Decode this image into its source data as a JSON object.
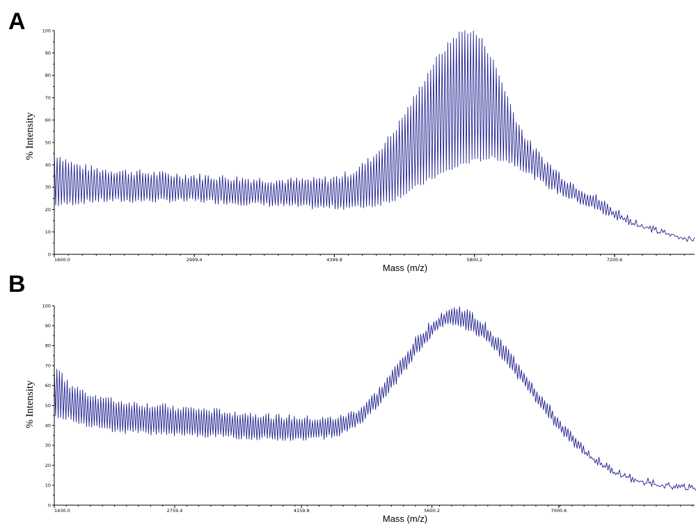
{
  "colors": {
    "trace": "#1f1f8f",
    "axis": "#000000"
  },
  "chart_data": [
    {
      "type": "line",
      "panel_label": "A",
      "xlabel": "Mass (m/z)",
      "ylabel": "% Intensity",
      "xlim": [
        1600.0,
        8000.0
      ],
      "ylim": [
        0,
        100
      ],
      "x_ticks": [
        1600.0,
        2999.4,
        4399.8,
        5800.2,
        7200.6
      ],
      "x_tick_labels": [
        "1600.0",
        "2999.4",
        "4399.8",
        "5800.2",
        "7200.6"
      ],
      "y_ticks": [
        0,
        10,
        20,
        30,
        40,
        50,
        60,
        70,
        80,
        90,
        100
      ],
      "grid": false,
      "series": [
        {
          "x": [
            1600,
            1800,
            2000,
            2300,
            2600,
            3000,
            3400,
            3800,
            4200,
            4400,
            4600,
            4800,
            5000,
            5200,
            5400,
            5600,
            5700,
            5800,
            5900,
            6000,
            6100,
            6200,
            6300,
            6400,
            6500,
            6600,
            6700,
            6800,
            7000,
            7200,
            7400,
            7600,
            7800,
            8000
          ],
          "peak_max": [
            45,
            40,
            38,
            37,
            36,
            35,
            34,
            33,
            33,
            34,
            37,
            44,
            55,
            70,
            86,
            97,
            100,
            99,
            94,
            85,
            74,
            62,
            53,
            47,
            42,
            38,
            34,
            31,
            26,
            20,
            15,
            11,
            8.5,
            6.5
          ],
          "baseline": [
            22,
            23,
            24,
            24,
            24,
            24,
            23,
            22,
            21,
            21,
            21,
            22,
            25,
            30,
            35,
            39,
            41,
            42,
            43,
            43,
            42,
            40,
            37,
            34,
            31,
            28,
            26,
            24,
            20,
            16,
            13,
            10,
            8,
            6.5
          ],
          "peak_spacing": 57
        }
      ]
    },
    {
      "type": "line",
      "panel_label": "B",
      "xlabel": "Mass (m/z)",
      "ylabel": "% Intensity",
      "xlim": [
        1430.0,
        8500.0
      ],
      "ylim": [
        0,
        100
      ],
      "x_ticks": [
        1430.0,
        2759.4,
        4159.8,
        5600.2,
        7000.6
      ],
      "x_tick_labels": [
        "1430.0",
        "2759.4",
        "4159.8",
        "5600.2",
        "7000.6"
      ],
      "y_ticks": [
        0,
        10,
        20,
        30,
        40,
        50,
        60,
        70,
        80,
        90,
        100
      ],
      "grid": false,
      "series": [
        {
          "x": [
            1430,
            1600,
            1800,
            2100,
            2500,
            3000,
            3500,
            4000,
            4400,
            4600,
            4800,
            5000,
            5200,
            5400,
            5600,
            5700,
            5800,
            5900,
            6000,
            6200,
            6400,
            6600,
            6800,
            7000,
            7200,
            7400,
            7600,
            7800,
            8000,
            8200,
            8500
          ],
          "peak_max": [
            70,
            60,
            56,
            52,
            50,
            48,
            46,
            44,
            43,
            44,
            48,
            57,
            69,
            82,
            92,
            96,
            98,
            99,
            97,
            90,
            80,
            68,
            55,
            43,
            32,
            24,
            18,
            14,
            12,
            10,
            9
          ],
          "baseline": [
            45,
            43,
            40,
            37,
            36,
            35,
            34,
            33,
            34,
            36,
            41,
            50,
            62,
            75,
            86,
            90,
            91,
            90,
            88,
            82,
            72,
            60,
            48,
            37,
            28,
            21,
            16,
            12,
            10,
            9,
            8
          ],
          "peak_spacing": 57
        }
      ]
    }
  ]
}
